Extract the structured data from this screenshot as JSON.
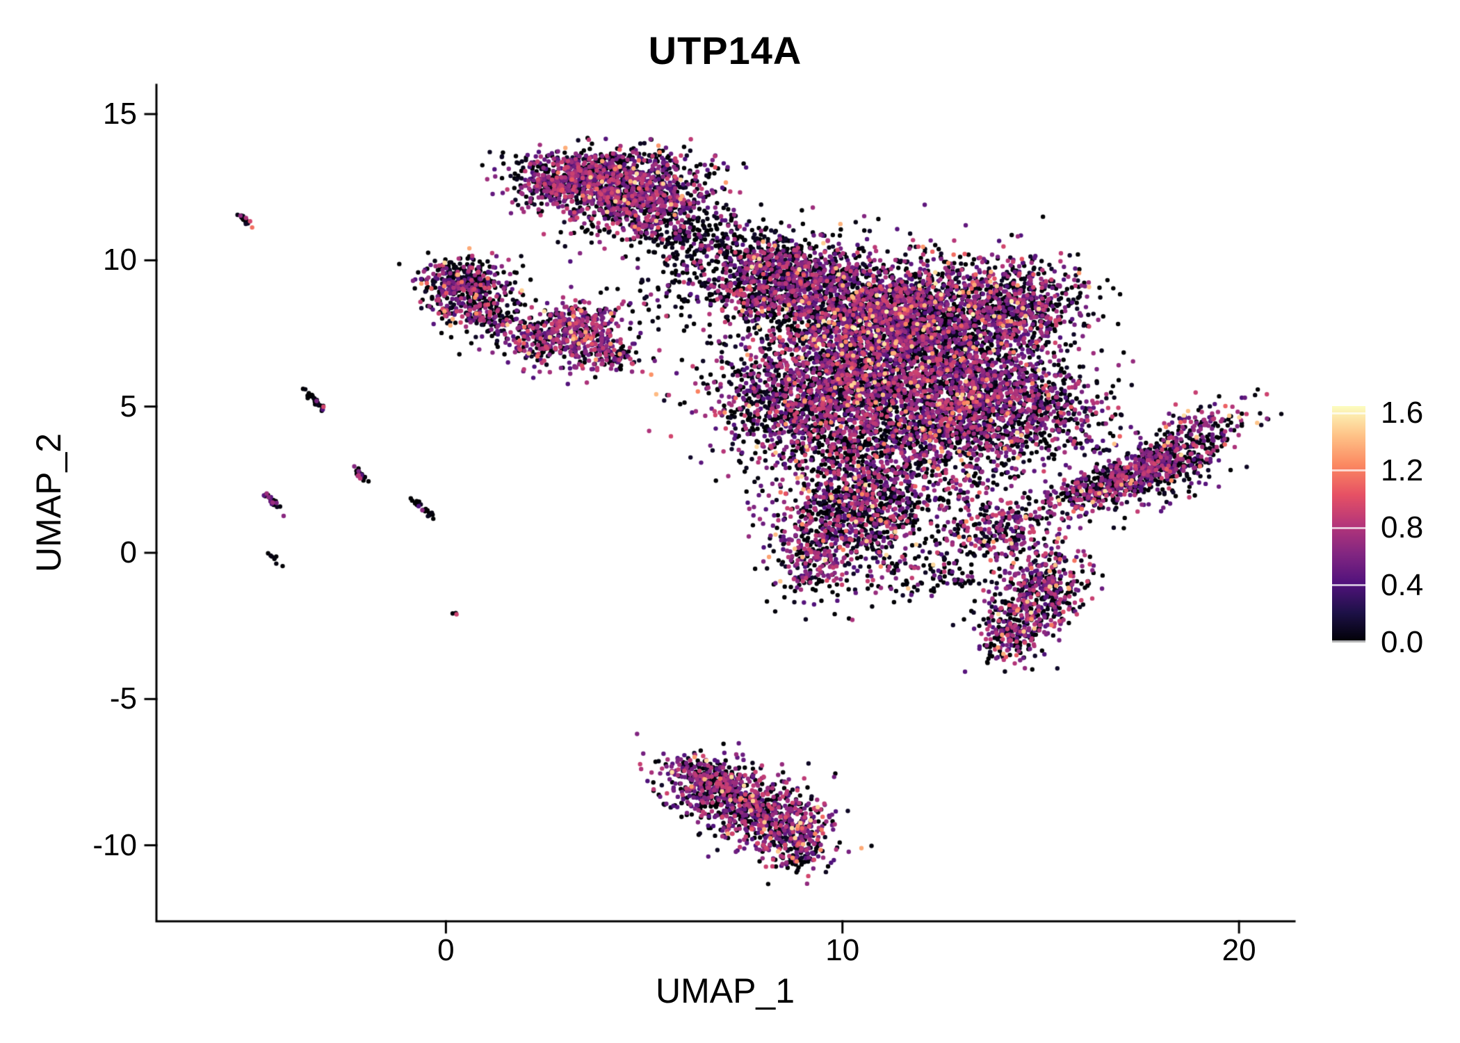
{
  "chart_data": {
    "type": "scatter",
    "title": "UTP14A",
    "xlabel": "UMAP_1",
    "ylabel": "UMAP_2",
    "x_range": [
      -7.3,
      21.4
    ],
    "y_range": [
      -12.6,
      16.0
    ],
    "x_ticks": [
      {
        "value": 0,
        "label": "0"
      },
      {
        "value": 10,
        "label": "10"
      },
      {
        "value": 20,
        "label": "20"
      }
    ],
    "y_ticks": [
      {
        "value": 15,
        "label": "15"
      },
      {
        "value": 10,
        "label": "10"
      },
      {
        "value": 5,
        "label": "5"
      },
      {
        "value": 0,
        "label": "0"
      },
      {
        "value": -5,
        "label": "-5"
      },
      {
        "value": -10,
        "label": "-10"
      }
    ],
    "grid": false,
    "axis_color": "#000000",
    "point_radius_px": 3.2,
    "random_seed": 42,
    "legend": {
      "position": "right",
      "range": [
        0,
        1.65
      ],
      "ticks": [
        {
          "value": 1.6,
          "label": "1.6"
        },
        {
          "value": 1.2,
          "label": "1.2"
        },
        {
          "value": 0.8,
          "label": "0.8"
        },
        {
          "value": 0.4,
          "label": "0.4"
        },
        {
          "value": 0.0,
          "label": "0.0"
        }
      ],
      "colormap": "magma",
      "colormap_stops": [
        "#000004",
        "#1d1147",
        "#51127c",
        "#822681",
        "#b63679",
        "#e65164",
        "#fb8861",
        "#fec287",
        "#fcfdbf"
      ]
    },
    "clusters": [
      {
        "name": "top-a",
        "cx": 3.5,
        "cy": 12.7,
        "sx": 0.95,
        "sy": 0.5,
        "n": 850,
        "p_zero": 0.45
      },
      {
        "name": "top-b",
        "cx": 5.0,
        "cy": 12.0,
        "sx": 0.85,
        "sy": 0.6,
        "rho": 0.3,
        "n": 650,
        "p_zero": 0.45
      },
      {
        "name": "top-fringe",
        "cx": 4.3,
        "cy": 13.4,
        "sx": 1.1,
        "sy": 0.3,
        "n": 150,
        "p_zero": 0.6
      },
      {
        "name": "top-tail",
        "cx": 6.1,
        "cy": 10.8,
        "sx": 0.6,
        "sy": 0.5,
        "rho": 0.3,
        "n": 160,
        "p_zero": 0.75
      },
      {
        "name": "left-upper-a",
        "cx": 0.45,
        "cy": 9.3,
        "sx": 0.6,
        "sy": 0.4,
        "n": 320,
        "p_zero": 0.6
      },
      {
        "name": "left-upper-b",
        "cx": 1.05,
        "cy": 8.2,
        "sx": 0.5,
        "sy": 0.55,
        "rho": -0.3,
        "n": 230,
        "p_zero": 0.6
      },
      {
        "name": "left-upper-c",
        "cx": -0.1,
        "cy": 8.4,
        "sx": 0.25,
        "sy": 0.45,
        "n": 60,
        "p_zero": 0.7
      },
      {
        "name": "mid-left",
        "cx": 3.1,
        "cy": 7.5,
        "sx": 0.7,
        "sy": 0.55,
        "rho": 0.2,
        "n": 520,
        "p_zero": 0.33
      },
      {
        "name": "mid-left-tail",
        "cx": 4.2,
        "cy": 6.7,
        "sx": 0.35,
        "sy": 0.3,
        "n": 90,
        "p_zero": 0.5
      },
      {
        "name": "main-upper-left",
        "cx": 8.5,
        "cy": 9.4,
        "sx": 1.0,
        "sy": 0.75,
        "n": 1100,
        "p_zero": 0.55
      },
      {
        "name": "main-upper",
        "cx": 11.4,
        "cy": 8.1,
        "sx": 1.5,
        "sy": 1.0,
        "n": 2400,
        "p_zero": 0.5,
        "e_max": 1.65,
        "hot_frac": 0.1
      },
      {
        "name": "main-center",
        "cx": 9.9,
        "cy": 5.4,
        "sx": 1.5,
        "sy": 1.2,
        "n": 2400,
        "p_zero": 0.55
      },
      {
        "name": "main-right",
        "cx": 13.4,
        "cy": 5.3,
        "sx": 1.2,
        "sy": 1.3,
        "n": 1700,
        "p_zero": 0.45
      },
      {
        "name": "main-lower",
        "cx": 10.4,
        "cy": 1.4,
        "sx": 1.0,
        "sy": 1.0,
        "n": 850,
        "p_zero": 0.5
      },
      {
        "name": "main-lower-spur",
        "cx": 9.3,
        "cy": -0.2,
        "sx": 0.5,
        "sy": 0.7,
        "n": 220,
        "p_zero": 0.5
      },
      {
        "name": "main-lower-right",
        "cx": 13.9,
        "cy": 0.7,
        "sx": 0.7,
        "sy": 0.6,
        "n": 260,
        "p_zero": 0.45
      },
      {
        "name": "main-upper-right",
        "cx": 14.6,
        "cy": 8.5,
        "sx": 0.8,
        "sy": 0.75,
        "n": 520,
        "p_zero": 0.5
      },
      {
        "name": "main-gap-fill",
        "cx": 11.6,
        "cy": 3.0,
        "sx": 1.4,
        "sy": 1.0,
        "n": 420,
        "p_zero": 0.65
      },
      {
        "name": "main-bridge-wing",
        "cx": 15.6,
        "cy": 4.6,
        "sx": 0.7,
        "sy": 0.8,
        "n": 180,
        "p_zero": 0.6
      },
      {
        "name": "wing-a",
        "cx": 16.6,
        "cy": 2.3,
        "sx": 0.85,
        "sy": 0.5,
        "rho": 0.75,
        "n": 380,
        "p_zero": 0.5
      },
      {
        "name": "wing-b",
        "cx": 18.3,
        "cy": 3.3,
        "sx": 0.85,
        "sy": 0.8,
        "rho": 0.6,
        "n": 600,
        "p_zero": 0.5
      },
      {
        "name": "lower-right-a",
        "cx": 14.9,
        "cy": -1.5,
        "sx": 0.65,
        "sy": 0.85,
        "rho": 0.3,
        "n": 520,
        "p_zero": 0.45
      },
      {
        "name": "lower-right-b",
        "cx": 14.2,
        "cy": -2.9,
        "sx": 0.4,
        "sy": 0.45,
        "n": 130,
        "p_zero": 0.5
      },
      {
        "name": "bottom-a",
        "cx": 6.8,
        "cy": -7.9,
        "sx": 0.7,
        "sy": 0.5,
        "rho": -0.3,
        "n": 450,
        "p_zero": 0.42
      },
      {
        "name": "bottom-b",
        "cx": 8.0,
        "cy": -8.9,
        "sx": 0.85,
        "sy": 0.65,
        "rho": -0.2,
        "n": 520,
        "p_zero": 0.42
      },
      {
        "name": "bottom-c",
        "cx": 8.8,
        "cy": -9.9,
        "sx": 0.45,
        "sy": 0.5,
        "n": 220,
        "p_zero": 0.42
      },
      {
        "name": "streak-1",
        "cx": -5.1,
        "cy": 11.4,
        "sx": 0.1,
        "sy": 0.14,
        "rho": -0.9,
        "n": 14,
        "p_zero": 0.85
      },
      {
        "name": "streak-2",
        "cx": -3.3,
        "cy": 5.2,
        "sx": 0.13,
        "sy": 0.18,
        "rho": -0.9,
        "n": 26,
        "p_zero": 0.8
      },
      {
        "name": "streak-3",
        "cx": -2.1,
        "cy": 2.6,
        "sx": 0.12,
        "sy": 0.16,
        "rho": -0.9,
        "n": 22,
        "p_zero": 0.8
      },
      {
        "name": "streak-4",
        "cx": -4.4,
        "cy": 1.8,
        "sx": 0.13,
        "sy": 0.18,
        "rho": -0.9,
        "n": 24,
        "p_zero": 0.65,
        "e_max": 1.35
      },
      {
        "name": "streak-5",
        "cx": -0.6,
        "cy": 1.55,
        "sx": 0.14,
        "sy": 0.16,
        "rho": -0.9,
        "n": 26,
        "p_zero": 0.85
      },
      {
        "name": "streak-6",
        "cx": -4.35,
        "cy": -0.15,
        "sx": 0.08,
        "sy": 0.1,
        "rho": -0.8,
        "n": 8,
        "p_zero": 0.9
      },
      {
        "name": "dot-singleton",
        "cx": 0.25,
        "cy": -2.1,
        "sx": 0.05,
        "sy": 0.06,
        "n": 3,
        "p_zero": 0.7
      },
      {
        "name": "bridge-top-main",
        "cx": 7.0,
        "cy": 10.3,
        "sx": 0.8,
        "sy": 0.5,
        "n": 110,
        "p_zero": 0.85
      },
      {
        "name": "bridge-midleft-top",
        "cx": 5.8,
        "cy": 8.8,
        "sx": 0.7,
        "sy": 0.6,
        "n": 60,
        "p_zero": 0.85
      },
      {
        "name": "bridge-lower-gap",
        "cx": 12.3,
        "cy": -0.6,
        "sx": 0.8,
        "sy": 0.6,
        "n": 120,
        "p_zero": 0.7
      }
    ]
  }
}
